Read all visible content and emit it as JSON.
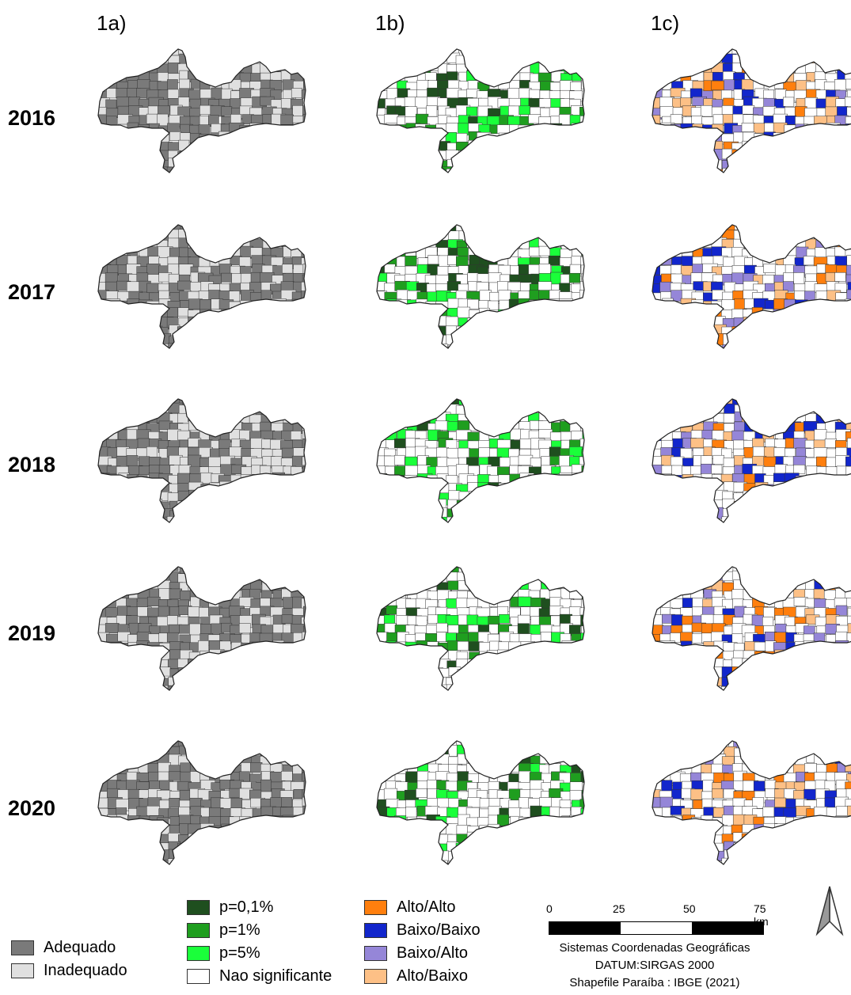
{
  "columns": [
    "1a)",
    "1b)",
    "1c)"
  ],
  "years": [
    "2016",
    "2017",
    "2018",
    "2019",
    "2020"
  ],
  "colors": {
    "adequado": "#7a7a7a",
    "inadequado": "#e0e0e0",
    "p01": "#1f4f1f",
    "p1": "#1f9e1f",
    "p5": "#1aff3a",
    "nao_sig": "#ffffff",
    "alto_alto": "#ff7f0e",
    "baixo_baixo": "#1226cc",
    "baixo_alto": "#9586d8",
    "alto_baixo": "#fdc086"
  },
  "legend_1a": [
    {
      "label": "Adequado",
      "color": "#7a7a7a"
    },
    {
      "label": "Inadequado",
      "color": "#e0e0e0"
    }
  ],
  "legend_1b": [
    {
      "label": "p=0,1%",
      "color": "#1f4f1f"
    },
    {
      "label": "p=1%",
      "color": "#1f9e1f"
    },
    {
      "label": "p=5%",
      "color": "#1aff3a"
    },
    {
      "label": "Nao significante",
      "color": "#ffffff"
    }
  ],
  "legend_1c": [
    {
      "label": "Alto/Alto",
      "color": "#ff7f0e"
    },
    {
      "label": "Baixo/Baixo",
      "color": "#1226cc"
    },
    {
      "label": "Baixo/Alto",
      "color": "#9586d8"
    },
    {
      "label": "Alto/Baixo",
      "color": "#fdc086"
    }
  ],
  "scale": {
    "ticks": [
      "0",
      "25",
      "50",
      "75 km"
    ]
  },
  "credits": [
    "Sistemas Coordenadas Geográficas",
    "DATUM:SIRGAS 2000",
    "Shapefile Paraíba : IBGE (2021)"
  ]
}
